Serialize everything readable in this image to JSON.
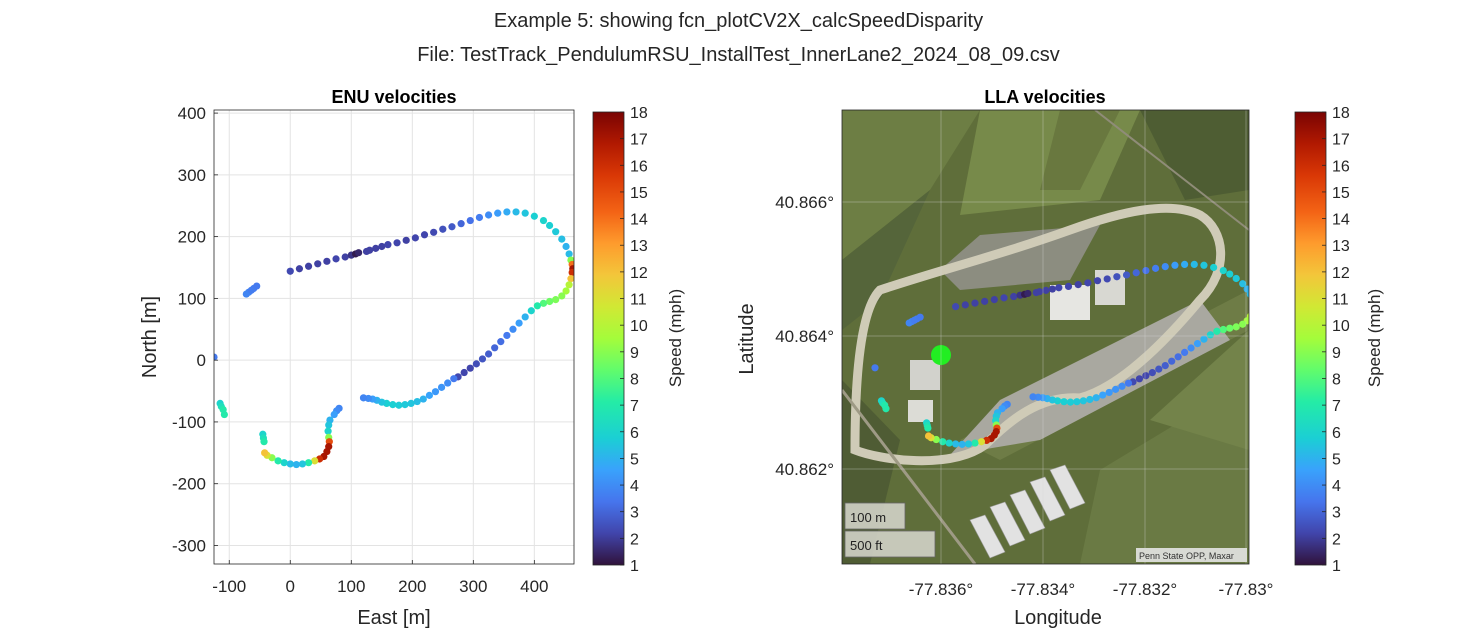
{
  "figure": {
    "title_line1": "Example 5: showing fcn_plotCV2X_calcSpeedDisparity",
    "title_line2": "File: TestTrack_PendulumRSU_InstallTest_InnerLane2_2024_08_09.csv"
  },
  "chart_data": [
    {
      "type": "scatter",
      "title": "ENU velocities",
      "xlabel": "East [m]",
      "ylabel": "North [m]",
      "xlim": [
        -125,
        465
      ],
      "ylim": [
        -330,
        405
      ],
      "xticks": [
        -100,
        0,
        100,
        200,
        300,
        400
      ],
      "yticks": [
        -300,
        -200,
        -100,
        0,
        100,
        200,
        300,
        400
      ],
      "grid": true,
      "colorbar": {
        "label": "Speed (mph)",
        "range": [
          1,
          18
        ],
        "ticks": [
          1,
          2,
          3,
          4,
          5,
          6,
          7,
          8,
          9,
          10,
          11,
          12,
          13,
          14,
          15,
          16,
          17,
          18
        ]
      },
      "points": [
        [
          -125,
          5,
          3.5
        ],
        [
          -115,
          -70,
          6
        ],
        [
          -113,
          -75,
          6.5
        ],
        [
          -110,
          -80,
          7
        ],
        [
          -108,
          -88,
          7
        ],
        [
          -72,
          107,
          3.8
        ],
        [
          -68,
          110,
          3.8
        ],
        [
          -64,
          113,
          3.6
        ],
        [
          -60,
          116,
          3.6
        ],
        [
          -55,
          120,
          3.5
        ],
        [
          0,
          144,
          2.3
        ],
        [
          15,
          148,
          2.1
        ],
        [
          30,
          152,
          2.1
        ],
        [
          45,
          156,
          2.1
        ],
        [
          60,
          160,
          2.1
        ],
        [
          75,
          164,
          2.2
        ],
        [
          90,
          167,
          2.1
        ],
        [
          100,
          170,
          1.8
        ],
        [
          107,
          172,
          1.2
        ],
        [
          112,
          174,
          1.5
        ],
        [
          125,
          176,
          2.1
        ],
        [
          130,
          178,
          2.1
        ],
        [
          140,
          181,
          2.1
        ],
        [
          150,
          184,
          2.1
        ],
        [
          160,
          187,
          2.2
        ],
        [
          175,
          190,
          2.2
        ],
        [
          190,
          194,
          2.1
        ],
        [
          205,
          198,
          2.2
        ],
        [
          220,
          203,
          2.2
        ],
        [
          235,
          207,
          2.3
        ],
        [
          250,
          212,
          2.5
        ],
        [
          265,
          216,
          2.7
        ],
        [
          280,
          221,
          3.0
        ],
        [
          295,
          226,
          3.3
        ],
        [
          310,
          231,
          3.6
        ],
        [
          325,
          235,
          4.0
        ],
        [
          340,
          238,
          4.4
        ],
        [
          355,
          240,
          4.8
        ],
        [
          370,
          240,
          5.2
        ],
        [
          385,
          238,
          5.5
        ],
        [
          400,
          233,
          5.8
        ],
        [
          415,
          226,
          6.0
        ],
        [
          425,
          218,
          5.8
        ],
        [
          435,
          208,
          5.6
        ],
        [
          445,
          196,
          5.3
        ],
        [
          452,
          184,
          5.0
        ],
        [
          457,
          172,
          5.2
        ],
        [
          460,
          162,
          9.0
        ],
        [
          462,
          155,
          14
        ],
        [
          463,
          148,
          17
        ],
        [
          462,
          142,
          16
        ],
        [
          460,
          132,
          12
        ],
        [
          457,
          122,
          10
        ],
        [
          452,
          112,
          9.5
        ],
        [
          445,
          104,
          9.0
        ],
        [
          435,
          98,
          8.8
        ],
        [
          425,
          95,
          8.5
        ],
        [
          415,
          92,
          8.0
        ],
        [
          405,
          88,
          7.0
        ],
        [
          395,
          80,
          6.0
        ],
        [
          385,
          70,
          5.0
        ],
        [
          375,
          60,
          4.5
        ],
        [
          365,
          50,
          4.0
        ],
        [
          355,
          40,
          3.5
        ],
        [
          345,
          30,
          3.2
        ],
        [
          335,
          20,
          3.0
        ],
        [
          325,
          10,
          2.8
        ],
        [
          315,
          2,
          2.6
        ],
        [
          305,
          -6,
          2.4
        ],
        [
          295,
          -13,
          2.2
        ],
        [
          285,
          -20,
          2.2
        ],
        [
          275,
          -27,
          2.3
        ],
        [
          268,
          -30,
          3.5
        ],
        [
          258,
          -37,
          4.0
        ],
        [
          248,
          -44,
          4.2
        ],
        [
          238,
          -51,
          4.3
        ],
        [
          228,
          -57,
          4.6
        ],
        [
          218,
          -63,
          5.0
        ],
        [
          208,
          -67,
          5.3
        ],
        [
          198,
          -70,
          5.5
        ],
        [
          188,
          -72,
          5.6
        ],
        [
          178,
          -73,
          5.7
        ],
        [
          168,
          -72,
          5.8
        ],
        [
          158,
          -70,
          5.8
        ],
        [
          150,
          -68,
          5.5
        ],
        [
          142,
          -65,
          5.0
        ],
        [
          135,
          -63,
          4.5
        ],
        [
          128,
          -62,
          4.0
        ],
        [
          120,
          -61,
          3.8
        ],
        [
          80,
          -78,
          3.8
        ],
        [
          76,
          -82,
          4.0
        ],
        [
          72,
          -88,
          4.5
        ],
        [
          65,
          -97,
          5.0
        ],
        [
          63,
          -105,
          5.5
        ],
        [
          62,
          -115,
          6.0
        ],
        [
          63,
          -125,
          9.0
        ],
        [
          64,
          -132,
          15
        ],
        [
          63,
          -140,
          17
        ],
        [
          60,
          -148,
          17
        ],
        [
          55,
          -156,
          17
        ],
        [
          48,
          -160,
          16
        ],
        [
          40,
          -163,
          11
        ],
        [
          30,
          -166,
          7.0
        ],
        [
          20,
          -168,
          5.5
        ],
        [
          10,
          -169,
          5.0
        ],
        [
          0,
          -168,
          5.2
        ],
        [
          -10,
          -166,
          6.0
        ],
        [
          -20,
          -163,
          7.0
        ],
        [
          -30,
          -158,
          9.0
        ],
        [
          -38,
          -154,
          11
        ],
        [
          -42,
          -150,
          12
        ],
        [
          -45,
          -120,
          6.0
        ],
        [
          -44,
          -126,
          6.5
        ],
        [
          -43,
          -132,
          7.0
        ]
      ]
    },
    {
      "type": "scatter",
      "title": "LLA velocities",
      "xlabel": "Longitude",
      "ylabel": "Latitude",
      "xlim": [
        -77.8372,
        -77.8302
      ],
      "ylim": [
        40.8606,
        40.8674
      ],
      "xticks": [
        "-77.836°",
        "-77.834°",
        "-77.832°",
        "-77.83°"
      ],
      "yticks": [
        "40.862°",
        "40.864°",
        "40.866°"
      ],
      "colorbar": {
        "label": "Speed (mph)",
        "range": [
          1,
          18
        ],
        "ticks": [
          1,
          2,
          3,
          4,
          5,
          6,
          7,
          8,
          9,
          10,
          11,
          12,
          13,
          14,
          15,
          16,
          17,
          18
        ]
      },
      "basemap": {
        "scale_bar_m": "100 m",
        "scale_bar_ft": "500 ft",
        "attribution": "Penn State OPP, Maxar"
      },
      "marker": {
        "type": "rsu-location",
        "color": "#22ee22"
      }
    }
  ]
}
